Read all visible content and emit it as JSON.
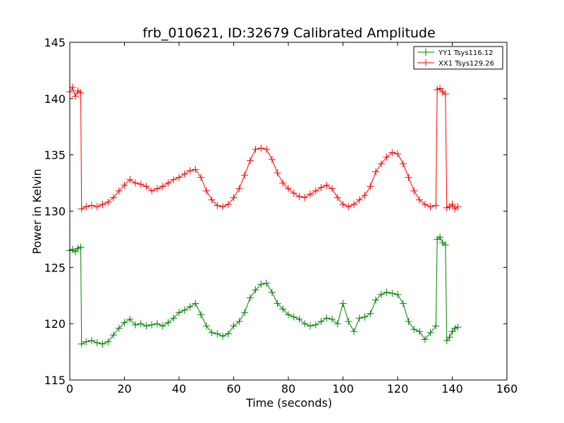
{
  "chart_data": {
    "type": "line",
    "title": "frb_010621, ID:32679 Calibrated Amplitude",
    "xlabel": "Time (seconds)",
    "ylabel": "Power in Kelvin",
    "xlim": [
      0,
      160
    ],
    "ylim": [
      115,
      145
    ],
    "x_ticks": [
      "0",
      "20",
      "40",
      "60",
      "80",
      "100",
      "120",
      "140",
      "160"
    ],
    "y_ticks": [
      "115",
      "120",
      "125",
      "130",
      "135",
      "140",
      "145"
    ],
    "grid": false,
    "legend_position": "top-right",
    "marker": "plus",
    "series": [
      {
        "name": "YY1 Tsys116.12",
        "color": "#008000",
        "points": [
          [
            0,
            126.5
          ],
          [
            1,
            126.6
          ],
          [
            2,
            126.4
          ],
          [
            3,
            126.7
          ],
          [
            4,
            126.8
          ],
          [
            4.3,
            118.2
          ],
          [
            6,
            118.4
          ],
          [
            8,
            118.5
          ],
          [
            10,
            118.3
          ],
          [
            12,
            118.2
          ],
          [
            14,
            118.4
          ],
          [
            16,
            119.0
          ],
          [
            18,
            119.6
          ],
          [
            20,
            120.1
          ],
          [
            22,
            120.4
          ],
          [
            24,
            119.9
          ],
          [
            26,
            120.0
          ],
          [
            28,
            119.8
          ],
          [
            30,
            119.9
          ],
          [
            32,
            120.0
          ],
          [
            34,
            119.8
          ],
          [
            36,
            120.1
          ],
          [
            38,
            120.5
          ],
          [
            40,
            121.0
          ],
          [
            42,
            121.2
          ],
          [
            44,
            121.5
          ],
          [
            46,
            121.8
          ],
          [
            48,
            120.8
          ],
          [
            50,
            119.8
          ],
          [
            52,
            119.2
          ],
          [
            54,
            119.1
          ],
          [
            56,
            118.9
          ],
          [
            58,
            119.1
          ],
          [
            60,
            119.8
          ],
          [
            62,
            120.2
          ],
          [
            64,
            121.0
          ],
          [
            66,
            122.3
          ],
          [
            68,
            123.0
          ],
          [
            70,
            123.5
          ],
          [
            72,
            123.6
          ],
          [
            74,
            122.8
          ],
          [
            76,
            121.8
          ],
          [
            78,
            121.3
          ],
          [
            80,
            120.8
          ],
          [
            82,
            120.6
          ],
          [
            84,
            120.4
          ],
          [
            86,
            120.0
          ],
          [
            88,
            119.8
          ],
          [
            90,
            119.9
          ],
          [
            92,
            120.2
          ],
          [
            94,
            120.5
          ],
          [
            96,
            120.4
          ],
          [
            98,
            120.0
          ],
          [
            100,
            121.8
          ],
          [
            102,
            120.2
          ],
          [
            104,
            119.3
          ],
          [
            106,
            120.5
          ],
          [
            108,
            120.6
          ],
          [
            110,
            120.9
          ],
          [
            112,
            122.1
          ],
          [
            114,
            122.6
          ],
          [
            116,
            122.8
          ],
          [
            118,
            122.7
          ],
          [
            120,
            122.6
          ],
          [
            122,
            121.8
          ],
          [
            124,
            120.2
          ],
          [
            126,
            119.5
          ],
          [
            128,
            119.3
          ],
          [
            130,
            118.6
          ],
          [
            132,
            119.2
          ],
          [
            134,
            119.8
          ],
          [
            134.5,
            127.5
          ],
          [
            135.5,
            127.7
          ],
          [
            136.5,
            127.2
          ],
          [
            137.5,
            127.0
          ],
          [
            138,
            118.5
          ],
          [
            139,
            118.8
          ],
          [
            140,
            119.3
          ],
          [
            141,
            119.6
          ],
          [
            142,
            119.7
          ]
        ]
      },
      {
        "name": "XX1 Tsys129.26",
        "color": "#ff0000",
        "points": [
          [
            0,
            140.6
          ],
          [
            1,
            141.0
          ],
          [
            2,
            140.2
          ],
          [
            3,
            140.7
          ],
          [
            4,
            140.5
          ],
          [
            4.3,
            130.2
          ],
          [
            6,
            130.4
          ],
          [
            8,
            130.5
          ],
          [
            10,
            130.4
          ],
          [
            12,
            130.6
          ],
          [
            14,
            130.8
          ],
          [
            16,
            131.2
          ],
          [
            18,
            131.8
          ],
          [
            20,
            132.3
          ],
          [
            22,
            132.8
          ],
          [
            24,
            132.5
          ],
          [
            26,
            132.4
          ],
          [
            28,
            132.2
          ],
          [
            30,
            131.8
          ],
          [
            32,
            132.0
          ],
          [
            34,
            132.2
          ],
          [
            36,
            132.5
          ],
          [
            38,
            132.8
          ],
          [
            40,
            133.0
          ],
          [
            42,
            133.3
          ],
          [
            44,
            133.6
          ],
          [
            46,
            133.7
          ],
          [
            48,
            133.0
          ],
          [
            50,
            131.8
          ],
          [
            52,
            131.0
          ],
          [
            54,
            130.5
          ],
          [
            56,
            130.4
          ],
          [
            58,
            130.6
          ],
          [
            60,
            131.2
          ],
          [
            62,
            132.0
          ],
          [
            64,
            133.2
          ],
          [
            66,
            134.5
          ],
          [
            68,
            135.5
          ],
          [
            70,
            135.6
          ],
          [
            72,
            135.5
          ],
          [
            74,
            134.6
          ],
          [
            76,
            133.4
          ],
          [
            78,
            132.5
          ],
          [
            80,
            132.0
          ],
          [
            82,
            131.6
          ],
          [
            84,
            131.3
          ],
          [
            86,
            131.2
          ],
          [
            88,
            131.5
          ],
          [
            90,
            131.8
          ],
          [
            92,
            132.1
          ],
          [
            94,
            132.3
          ],
          [
            96,
            132.0
          ],
          [
            98,
            131.2
          ],
          [
            100,
            130.6
          ],
          [
            102,
            130.4
          ],
          [
            104,
            130.6
          ],
          [
            106,
            131.0
          ],
          [
            108,
            131.4
          ],
          [
            110,
            132.2
          ],
          [
            112,
            133.5
          ],
          [
            114,
            134.2
          ],
          [
            116,
            134.8
          ],
          [
            118,
            135.2
          ],
          [
            120,
            135.1
          ],
          [
            122,
            134.2
          ],
          [
            124,
            133.0
          ],
          [
            126,
            131.8
          ],
          [
            128,
            131.0
          ],
          [
            130,
            130.6
          ],
          [
            132,
            130.4
          ],
          [
            134,
            130.5
          ],
          [
            134.5,
            140.8
          ],
          [
            135.5,
            140.9
          ],
          [
            136.5,
            140.6
          ],
          [
            137.5,
            140.4
          ],
          [
            138,
            130.3
          ],
          [
            139,
            130.4
          ],
          [
            140,
            130.6
          ],
          [
            141,
            130.2
          ],
          [
            142,
            130.4
          ]
        ]
      }
    ]
  }
}
